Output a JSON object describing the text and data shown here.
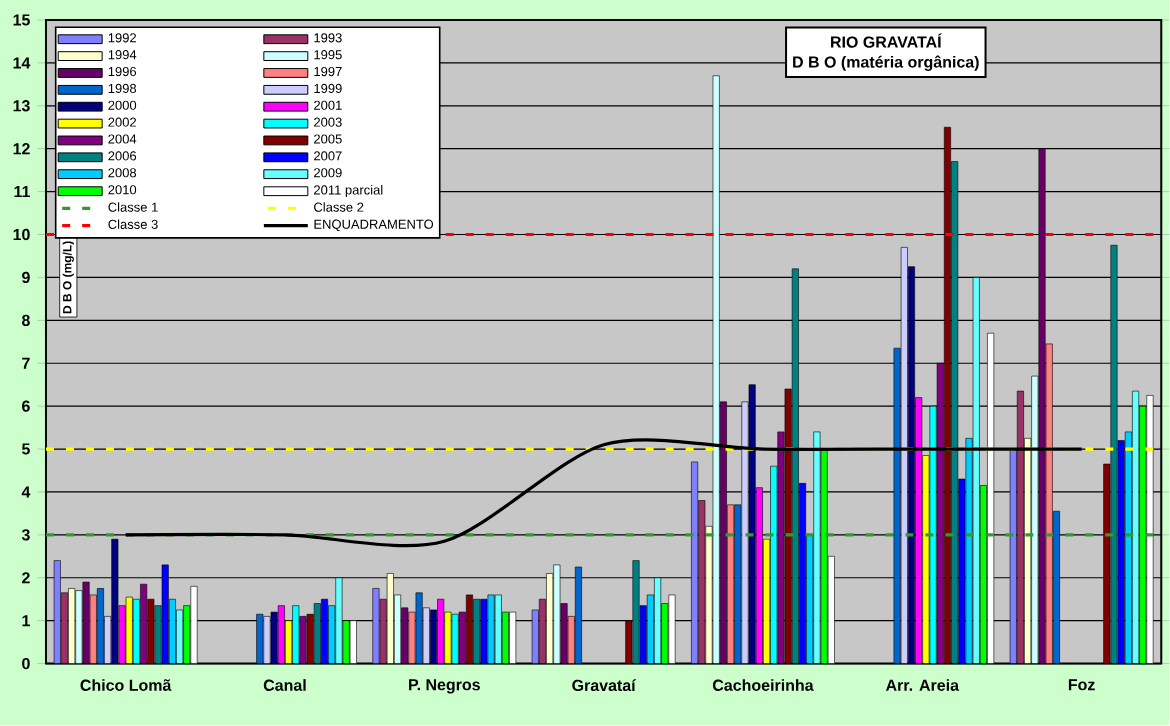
{
  "chart_data": {
    "type": "bar",
    "title": "RIO GRAVATAÍ",
    "subtitle": "D B O (matéria orgânica)",
    "ylabel": "D B O (mg/L)",
    "categories": [
      "Chico Lomã",
      "Canal",
      "P. Negros",
      "Gravataí",
      "Cachoeirinha",
      "Arr. Areia",
      "Foz"
    ],
    "series": [
      {
        "name": "1992",
        "color": "#8080ff",
        "values": [
          2.4,
          null,
          1.75,
          1.25,
          4.7,
          null,
          5.0
        ]
      },
      {
        "name": "1993",
        "color": "#993366",
        "values": [
          1.65,
          null,
          1.5,
          1.5,
          3.8,
          null,
          6.35
        ]
      },
      {
        "name": "1994",
        "color": "#ffffcc",
        "values": [
          1.75,
          null,
          2.1,
          2.1,
          3.2,
          null,
          5.25
        ]
      },
      {
        "name": "1995",
        "color": "#ccffff",
        "values": [
          1.7,
          null,
          1.6,
          2.3,
          13.7,
          null,
          6.7
        ]
      },
      {
        "name": "1996",
        "color": "#660066",
        "values": [
          1.9,
          null,
          1.3,
          1.4,
          6.1,
          null,
          12.0
        ]
      },
      {
        "name": "1997",
        "color": "#ff8080",
        "values": [
          1.6,
          null,
          1.2,
          1.1,
          3.7,
          null,
          7.45
        ]
      },
      {
        "name": "1998",
        "color": "#0066cc",
        "values": [
          1.75,
          1.15,
          1.65,
          2.25,
          3.7,
          7.35,
          3.55
        ]
      },
      {
        "name": "1999",
        "color": "#ccccff",
        "values": [
          1.1,
          1.1,
          1.3,
          null,
          6.1,
          9.7,
          null
        ]
      },
      {
        "name": "2000",
        "color": "#000080",
        "values": [
          2.9,
          1.2,
          1.25,
          null,
          6.5,
          9.25,
          null
        ]
      },
      {
        "name": "2001",
        "color": "#ff00ff",
        "values": [
          1.35,
          1.35,
          1.5,
          null,
          4.1,
          6.2,
          null
        ]
      },
      {
        "name": "2002",
        "color": "#ffff00",
        "values": [
          1.55,
          1.0,
          1.2,
          null,
          2.9,
          4.85,
          null
        ]
      },
      {
        "name": "2003",
        "color": "#00ffff",
        "values": [
          1.5,
          1.35,
          1.15,
          null,
          4.6,
          6.0,
          null
        ]
      },
      {
        "name": "2004",
        "color": "#800080",
        "values": [
          1.85,
          1.1,
          1.2,
          null,
          5.4,
          7.0,
          null
        ]
      },
      {
        "name": "2005",
        "color": "#800000",
        "values": [
          1.5,
          1.15,
          1.6,
          1.0,
          6.4,
          12.5,
          4.65
        ]
      },
      {
        "name": "2006",
        "color": "#008080",
        "values": [
          1.35,
          1.4,
          1.5,
          2.4,
          9.2,
          11.7,
          9.75
        ]
      },
      {
        "name": "2007",
        "color": "#0000ff",
        "values": [
          2.3,
          1.5,
          1.5,
          1.35,
          4.2,
          4.3,
          5.2
        ]
      },
      {
        "name": "2008",
        "color": "#00ccff",
        "values": [
          1.5,
          1.35,
          1.6,
          1.6,
          3.0,
          5.25,
          5.4
        ]
      },
      {
        "name": "2009",
        "color": "#66ffff",
        "values": [
          1.25,
          2.0,
          1.6,
          2.0,
          5.4,
          9.0,
          6.35
        ]
      },
      {
        "name": "2010",
        "color": "#00ff00",
        "values": [
          1.35,
          1.0,
          1.2,
          1.4,
          5.0,
          4.15,
          6.0
        ]
      },
      {
        "name": "2011 parcial",
        "color": "#ffffff",
        "values": [
          1.8,
          1.0,
          1.2,
          1.6,
          2.5,
          7.7,
          6.25
        ]
      },
      {
        "name": "ENQUADRAMENTO",
        "type": "line",
        "color": "#000000",
        "values": [
          3.0,
          3.0,
          2.85,
          5.1,
          5.0,
          5.0,
          5.0
        ]
      }
    ],
    "ref_lines": [
      {
        "axis": "y",
        "value": 3,
        "label": "Classe 1",
        "color": "#339933",
        "line_style": "dashed"
      },
      {
        "axis": "y",
        "value": 5,
        "label": "Classe 2",
        "color": "#ffff00",
        "line_style": "dashed"
      },
      {
        "axis": "y",
        "value": 10,
        "label": "Classe 3",
        "color": "#ff0000",
        "line_style": "dashed"
      }
    ],
    "ylim": [
      0,
      15
    ],
    "yticks": [
      0,
      1,
      2,
      3,
      4,
      5,
      6,
      7,
      8,
      9,
      10,
      11,
      12,
      13,
      14,
      15
    ],
    "grid": "y",
    "legend": "top left"
  }
}
